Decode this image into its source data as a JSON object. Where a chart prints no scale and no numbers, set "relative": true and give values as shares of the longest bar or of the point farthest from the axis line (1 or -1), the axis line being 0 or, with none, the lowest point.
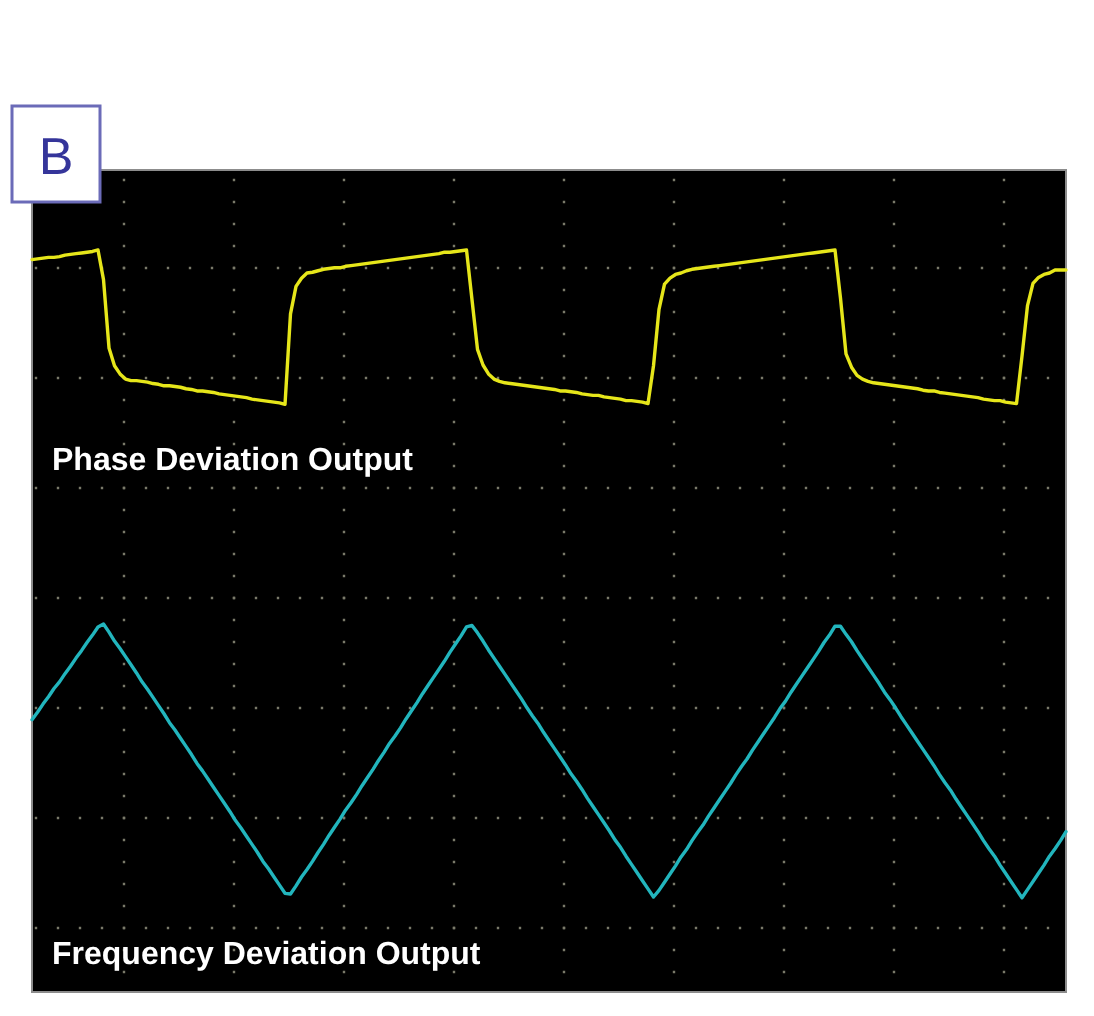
{
  "chart_data": {
    "type": "line",
    "title": "B",
    "relative": true,
    "grid": true,
    "categories": [
      null,
      null,
      null,
      null,
      null,
      null,
      null,
      null,
      null,
      null,
      null,
      null,
      null,
      null,
      null,
      null,
      null,
      null,
      null,
      null,
      null,
      null,
      null,
      null,
      null,
      null,
      null,
      null,
      null,
      null,
      null,
      null,
      null,
      null,
      null,
      null,
      null,
      null,
      null,
      null,
      null,
      null,
      null,
      null,
      null,
      null,
      null,
      null,
      null,
      null,
      null,
      null,
      null,
      null,
      null,
      null,
      null,
      null,
      null,
      null,
      null,
      null,
      null,
      null,
      null,
      null,
      null,
      null,
      null,
      null,
      null,
      null,
      null,
      null,
      null,
      null,
      null,
      null,
      null,
      null,
      null,
      null,
      null,
      null,
      null,
      null,
      null,
      null,
      null,
      null,
      null,
      null,
      null,
      null,
      null,
      null,
      null,
      null,
      null,
      null,
      null,
      null,
      null,
      null,
      null,
      null,
      null,
      null,
      null,
      null,
      null,
      null,
      null,
      null,
      null,
      null,
      null,
      null,
      null,
      null,
      null,
      null,
      null,
      null,
      null,
      null,
      null,
      null,
      null,
      null,
      null,
      null,
      null,
      null,
      null,
      null,
      null,
      null,
      null,
      null,
      null,
      null,
      null,
      null,
      null,
      null,
      null,
      null,
      null,
      null,
      null,
      null,
      null,
      null,
      null,
      null,
      null,
      null,
      null,
      null,
      null,
      null,
      null,
      null,
      null,
      null,
      null,
      null,
      null,
      null,
      null,
      null,
      null,
      null,
      null,
      null,
      null,
      null,
      null,
      null,
      null,
      null,
      null,
      null,
      null,
      null,
      null,
      null,
      null
    ],
    "series": [
      {
        "name": "Phase Deviation Output",
        "color": "#e6e61a",
        "values": [
          0.987,
          0.988,
          0.989,
          0.99,
          0.99,
          0.991,
          0.993,
          0.994,
          0.995,
          0.996,
          0.997,
          0.998,
          1,
          0.96,
          0.868,
          0.844,
          0.833,
          0.826,
          0.824,
          0.824,
          0.823,
          0.822,
          0.82,
          0.819,
          0.817,
          0.817,
          0.816,
          0.815,
          0.813,
          0.812,
          0.81,
          0.81,
          0.809,
          0.808,
          0.806,
          0.805,
          0.804,
          0.803,
          0.802,
          0.801,
          0.799,
          0.798,
          0.797,
          0.796,
          0.795,
          0.794,
          0.792,
          0.914,
          0.951,
          0.962,
          0.969,
          0.97,
          0.972,
          0.974,
          0.975,
          0.976,
          0.976,
          0.978,
          0.979,
          0.98,
          0.981,
          0.982,
          0.983,
          0.984,
          0.985,
          0.986,
          0.987,
          0.988,
          0.989,
          0.99,
          0.991,
          0.992,
          0.993,
          0.994,
          0.995,
          0.997,
          0.997,
          0.998,
          0.999,
          1,
          0.933,
          0.866,
          0.845,
          0.833,
          0.826,
          0.823,
          0.821,
          0.82,
          0.819,
          0.818,
          0.817,
          0.816,
          0.815,
          0.814,
          0.813,
          0.812,
          0.81,
          0.81,
          0.809,
          0.808,
          0.806,
          0.805,
          0.804,
          0.804,
          0.802,
          0.801,
          0.8,
          0.799,
          0.797,
          0.797,
          0.796,
          0.795,
          0.793,
          0.844,
          0.92,
          0.954,
          0.962,
          0.967,
          0.969,
          0.972,
          0.974,
          0.975,
          0.976,
          0.977,
          0.978,
          0.979,
          0.98,
          0.981,
          0.982,
          0.983,
          0.984,
          0.985,
          0.986,
          0.987,
          0.988,
          0.989,
          0.99,
          0.991,
          0.992,
          0.993,
          0.994,
          0.995,
          0.996,
          0.997,
          0.998,
          0.999,
          1,
          0.935,
          0.86,
          0.842,
          0.831,
          0.826,
          0.823,
          0.821,
          0.82,
          0.819,
          0.818,
          0.817,
          0.816,
          0.815,
          0.814,
          0.813,
          0.811,
          0.81,
          0.81,
          0.808,
          0.807,
          0.806,
          0.805,
          0.804,
          0.803,
          0.802,
          0.801,
          0.799,
          0.798,
          0.797,
          0.797,
          0.795,
          0.794,
          0.793,
          0.857,
          0.925,
          0.955,
          0.963,
          0.967,
          0.969,
          0.973,
          0.973,
          0.973
        ]
      },
      {
        "name": "Frequency Deviation Output",
        "color": "#22b5bd",
        "values": [
          0.367,
          0.377,
          0.388,
          0.398,
          0.409,
          0.418,
          0.429,
          0.439,
          0.45,
          0.46,
          0.471,
          0.481,
          0.492,
          0.496,
          0.485,
          0.473,
          0.463,
          0.452,
          0.441,
          0.43,
          0.418,
          0.408,
          0.397,
          0.386,
          0.375,
          0.363,
          0.353,
          0.342,
          0.331,
          0.32,
          0.308,
          0.298,
          0.287,
          0.276,
          0.265,
          0.254,
          0.243,
          0.231,
          0.221,
          0.21,
          0.199,
          0.188,
          0.176,
          0.166,
          0.155,
          0.144,
          0.133,
          0.132,
          0.143,
          0.155,
          0.165,
          0.176,
          0.188,
          0.199,
          0.211,
          0.222,
          0.233,
          0.245,
          0.255,
          0.266,
          0.278,
          0.289,
          0.3,
          0.312,
          0.323,
          0.335,
          0.345,
          0.356,
          0.368,
          0.379,
          0.39,
          0.402,
          0.413,
          0.424,
          0.435,
          0.446,
          0.458,
          0.469,
          0.48,
          0.492,
          0.494,
          0.484,
          0.473,
          0.461,
          0.45,
          0.439,
          0.428,
          0.417,
          0.406,
          0.395,
          0.383,
          0.372,
          0.362,
          0.35,
          0.339,
          0.328,
          0.317,
          0.306,
          0.294,
          0.284,
          0.273,
          0.261,
          0.25,
          0.239,
          0.228,
          0.217,
          0.205,
          0.195,
          0.183,
          0.172,
          0.161,
          0.15,
          0.139,
          0.128,
          0.137,
          0.148,
          0.159,
          0.17,
          0.182,
          0.192,
          0.204,
          0.215,
          0.225,
          0.237,
          0.248,
          0.259,
          0.27,
          0.281,
          0.293,
          0.304,
          0.314,
          0.326,
          0.337,
          0.348,
          0.359,
          0.37,
          0.382,
          0.392,
          0.404,
          0.415,
          0.426,
          0.437,
          0.448,
          0.459,
          0.471,
          0.481,
          0.493,
          0.493,
          0.482,
          0.472,
          0.46,
          0.449,
          0.438,
          0.427,
          0.416,
          0.404,
          0.394,
          0.383,
          0.371,
          0.36,
          0.349,
          0.338,
          0.327,
          0.316,
          0.305,
          0.293,
          0.282,
          0.272,
          0.26,
          0.249,
          0.238,
          0.227,
          0.216,
          0.204,
          0.193,
          0.183,
          0.171,
          0.16,
          0.149,
          0.138,
          0.127,
          0.138,
          0.149,
          0.16,
          0.171,
          0.183,
          0.193,
          0.204,
          0.216
        ]
      }
    ]
  }
}
